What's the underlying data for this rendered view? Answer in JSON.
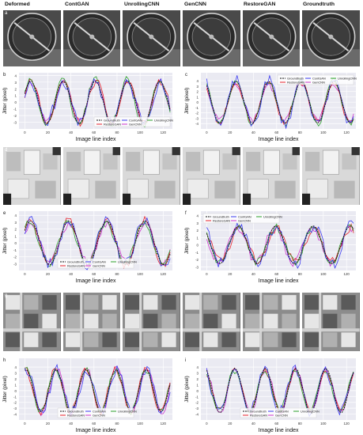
{
  "column_titles": [
    "Deformed",
    "ContGAN",
    "UnrollingCNN",
    "GenCNN",
    "RestoreGAN",
    "Groundtruth"
  ],
  "row_letters": [
    "a",
    "d",
    "g"
  ],
  "plot_letters": [
    "b",
    "c",
    "e",
    "f",
    "h",
    "i"
  ],
  "xlabel": "Image line index",
  "ylabel": "Jitter (pixel)",
  "colors": {
    "Groundtruth": "#111111",
    "ContGAN": "#3b3bf0",
    "UnrollingCNN": "#2ca02c",
    "RestoreGAN": "#e8202a",
    "GenCNN": "#cc33cc",
    "axes_bg": "#eaeaf2",
    "grid": "#ffffff"
  },
  "chart_data": [
    {
      "id": "b",
      "type": "line",
      "xlim": [
        -5,
        128
      ],
      "ylim": [
        -4,
        4.4
      ],
      "xticks": [
        0,
        20,
        40,
        60,
        80,
        100,
        120
      ],
      "yticks": [
        -3,
        -2,
        -1,
        0,
        1,
        2,
        3,
        4
      ],
      "legend": [
        "Groundtruth",
        "RestoreGAN",
        "ContGAN",
        "GenCNN",
        "UnrollingCNN"
      ],
      "legend_loc": "lower-right",
      "amp": 3.2,
      "period": 28,
      "phase": 0.4,
      "seed": 11
    },
    {
      "id": "c",
      "type": "line",
      "xlim": [
        -5,
        128
      ],
      "ylim": [
        -5,
        5.5
      ],
      "xticks": [
        0,
        20,
        40,
        60,
        80,
        100,
        120
      ],
      "yticks": [
        -4,
        -3,
        -2,
        -1,
        0,
        1,
        2,
        3,
        4
      ],
      "legend": [
        "Groundtruth",
        "RestoreGAN",
        "ContGAN",
        "GenCNN",
        "UnrollingCNN"
      ],
      "legend_loc": "upper-right",
      "amp": 3.9,
      "period": 28,
      "phase": 2.2,
      "seed": 23
    },
    {
      "id": "e",
      "type": "line",
      "xlim": [
        -5,
        128
      ],
      "ylim": [
        -4,
        4.6
      ],
      "xticks": [
        0,
        20,
        40,
        60,
        80,
        100,
        120
      ],
      "yticks": [
        -3,
        -2,
        -1,
        0,
        1,
        2,
        3,
        4
      ],
      "legend": [
        "Groundtruth",
        "RestoreGAN",
        "ContGAN",
        "GenCNN",
        "UnrollingCNN"
      ],
      "legend_loc": "lower-center",
      "amp": 3.2,
      "period": 33,
      "phase": 0.6,
      "seed": 37
    },
    {
      "id": "f",
      "type": "line",
      "xlim": [
        -5,
        128
      ],
      "ylim": [
        -3.5,
        4.6
      ],
      "xticks": [
        0,
        20,
        40,
        60,
        80,
        100,
        120
      ],
      "yticks": [
        -3,
        -2,
        -1,
        0,
        1,
        2,
        3,
        4
      ],
      "legend": [
        "Groundtruth",
        "RestoreGAN",
        "ContGAN",
        "GenCNN",
        "UnrollingCNN"
      ],
      "legend_loc": "upper-left",
      "amp": 2.6,
      "period": 32,
      "phase": 2.5,
      "seed": 53
    },
    {
      "id": "h",
      "type": "line",
      "xlim": [
        -5,
        128
      ],
      "ylim": [
        -5,
        5.5
      ],
      "xticks": [
        0,
        20,
        40,
        60,
        80,
        100,
        120
      ],
      "yticks": [
        -4,
        -3,
        -2,
        -1,
        0,
        1,
        2,
        3,
        4
      ],
      "legend": [
        "Groundtruth",
        "RestoreGAN",
        "ContGAN",
        "GenCNN",
        "UnrollingCNN"
      ],
      "legend_loc": "lower-center",
      "amp": 3.6,
      "period": 26,
      "phase": 1.3,
      "seed": 71
    },
    {
      "id": "i",
      "type": "line",
      "xlim": [
        -5,
        128
      ],
      "ylim": [
        -5,
        5.5
      ],
      "xticks": [
        0,
        20,
        40,
        60,
        80,
        100,
        120
      ],
      "yticks": [
        -4,
        -3,
        -2,
        -1,
        0,
        1,
        2,
        3,
        4
      ],
      "legend": [
        "Groundtruth",
        "RestoreGAN",
        "ContGAN",
        "GenCNN",
        "UnrollingCNN"
      ],
      "legend_loc": "lower-center",
      "amp": 3.8,
      "period": 26,
      "phase": 2.0,
      "seed": 89
    }
  ]
}
